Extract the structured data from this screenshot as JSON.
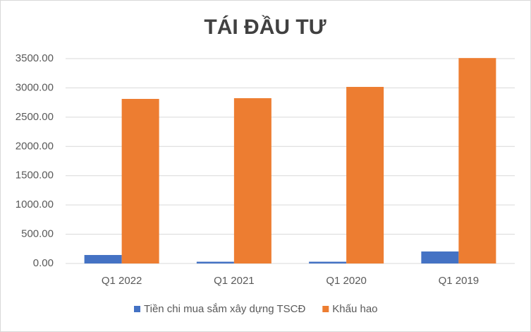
{
  "chart_data": {
    "type": "bar",
    "title": "TÁI ĐẦU TƯ",
    "categories": [
      "Q1 2022",
      "Q1 2021",
      "Q1 2020",
      "Q1 2019"
    ],
    "series": [
      {
        "name": "Tiền chi mua sắm xây dựng TSCĐ",
        "color": "#4472c4",
        "values": [
          145,
          30,
          30,
          205
        ]
      },
      {
        "name": "Khấu hao",
        "color": "#ed7d31",
        "values": [
          2812,
          2824,
          3017,
          3510
        ]
      }
    ],
    "ylim": [
      0,
      3500
    ],
    "yticks": [
      {
        "value": 0,
        "label": "0.00"
      },
      {
        "value": 500,
        "label": "500.00"
      },
      {
        "value": 1000,
        "label": "1000.00"
      },
      {
        "value": 1500,
        "label": "1500.00"
      },
      {
        "value": 2000,
        "label": "2000.00"
      },
      {
        "value": 2500,
        "label": "2500.00"
      },
      {
        "value": 3000,
        "label": "3000.00"
      },
      {
        "value": 3500,
        "label": "3500.00"
      }
    ],
    "grid": true,
    "legend": "bottom"
  }
}
